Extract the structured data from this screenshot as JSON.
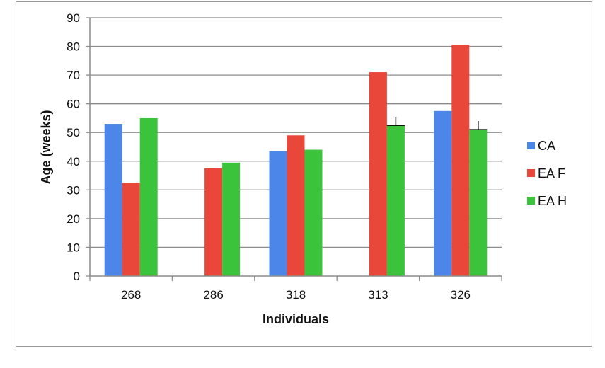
{
  "chart_data": {
    "type": "bar",
    "title": "",
    "xlabel": "Individuals",
    "ylabel": "Age (weeks)",
    "categories": [
      "268",
      "286",
      "318",
      "313",
      "326"
    ],
    "ylim": [
      0,
      90
    ],
    "yticks": [
      0,
      10,
      20,
      30,
      40,
      50,
      60,
      70,
      80,
      90
    ],
    "grid": true,
    "legend_position": "right",
    "series": [
      {
        "name": "CA",
        "color": "#4b86e8",
        "values": [
          53,
          null,
          43.5,
          null,
          57.5
        ]
      },
      {
        "name": "EA F",
        "color": "#e8473a",
        "values": [
          32.5,
          37.5,
          49,
          71,
          80.5
        ]
      },
      {
        "name": "EA H",
        "color": "#3bc43b",
        "values": [
          55,
          39.5,
          44,
          52.5,
          51
        ]
      }
    ],
    "error_bars": [
      {
        "series": "EA H",
        "category": "313",
        "upper": 55.5
      },
      {
        "series": "EA H",
        "category": "326",
        "upper": 54
      }
    ]
  }
}
